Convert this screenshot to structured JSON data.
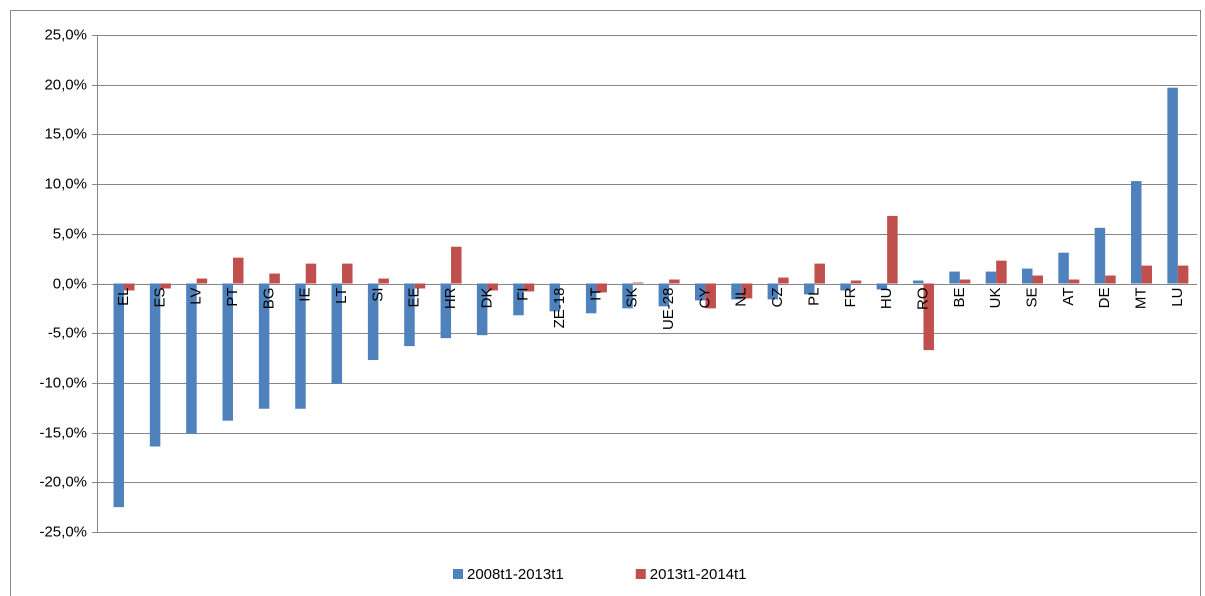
{
  "chart_data": {
    "type": "bar",
    "categories": [
      "EL",
      "ES",
      "LV",
      "PT",
      "BG",
      "IE",
      "LT",
      "SI",
      "EE",
      "HR",
      "DK",
      "FI",
      "ZE-18",
      "IT",
      "SK",
      "UE-28",
      "CY",
      "NL",
      "CZ",
      "PL",
      "FR",
      "HU",
      "RO",
      "BE",
      "UK",
      "SE",
      "AT",
      "DE",
      "MT",
      "LU"
    ],
    "series": [
      {
        "name": "2008t1-2013t1",
        "color": "#4f81bd",
        "values": [
          -22.5,
          -16.4,
          -15.1,
          -13.8,
          -12.6,
          -12.6,
          -10.1,
          -7.7,
          -6.3,
          -5.5,
          -5.2,
          -3.2,
          -2.8,
          -3.0,
          -2.5,
          -2.3,
          -1.7,
          -1.6,
          -1.6,
          -1.1,
          -0.7,
          -0.6,
          0.3,
          1.2,
          1.2,
          1.5,
          3.1,
          5.6,
          10.3,
          19.7
        ]
      },
      {
        "name": "2013t1-2014t1",
        "color": "#c0504d",
        "values": [
          -0.7,
          -0.5,
          0.5,
          2.6,
          1.0,
          2.0,
          2.0,
          0.5,
          -0.5,
          3.7,
          -0.7,
          -0.8,
          0.0,
          -0.9,
          0.1,
          0.4,
          -2.5,
          -1.5,
          0.6,
          2.0,
          0.3,
          6.8,
          -6.7,
          0.4,
          2.3,
          0.8,
          0.4,
          0.8,
          1.8,
          1.8
        ]
      }
    ],
    "ylim": [
      -25,
      25
    ],
    "yticks": [
      {
        "value": 25,
        "label": "25,0%"
      },
      {
        "value": 20,
        "label": "20,0%"
      },
      {
        "value": 15,
        "label": "15,0%"
      },
      {
        "value": 10,
        "label": "10,0%"
      },
      {
        "value": 5,
        "label": "5,0%"
      },
      {
        "value": 0,
        "label": "0,0%"
      },
      {
        "value": -5,
        "label": "-5,0%"
      },
      {
        "value": -10,
        "label": "-10,0%"
      },
      {
        "value": -15,
        "label": "-15,0%"
      },
      {
        "value": -20,
        "label": "-20,0%"
      },
      {
        "value": -25,
        "label": "-25,0%"
      }
    ],
    "grid": true,
    "legend": "bottom"
  }
}
